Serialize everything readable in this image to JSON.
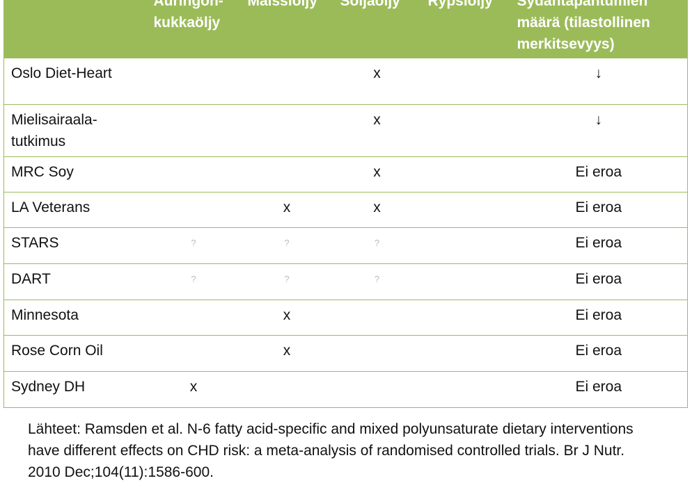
{
  "table": {
    "headers": [
      "Auringon-kukkaöljy",
      "Maissiöljy",
      "Soijaöljy",
      "Rypsiöljy",
      "Sydäntapahtumien määrä  (tilastollinen merkitsevyys)"
    ],
    "rows": [
      {
        "label": "Oslo Diet-Heart",
        "cells": [
          null,
          null,
          "x",
          null,
          "↓"
        ]
      },
      {
        "label": "Mielisairaala-tutkimus",
        "cells": [
          null,
          null,
          "x",
          null,
          "↓"
        ]
      },
      {
        "label": "MRC Soy",
        "cells": [
          null,
          null,
          "x",
          null,
          "Ei eroa"
        ]
      },
      {
        "label": "LA Veterans",
        "cells": [
          null,
          "x",
          "x",
          null,
          "Ei eroa"
        ]
      },
      {
        "label": "STARS",
        "cells": [
          "?",
          "?",
          "?",
          null,
          "Ei eroa"
        ]
      },
      {
        "label": "DART",
        "cells": [
          "?",
          "?",
          "?",
          null,
          "Ei eroa"
        ]
      },
      {
        "label": "Minnesota",
        "cells": [
          null,
          "x",
          null,
          null,
          "Ei eroa"
        ]
      },
      {
        "label": "Rose Corn Oil",
        "cells": [
          null,
          "x",
          null,
          null,
          "Ei eroa"
        ]
      },
      {
        "label": "Sydney DH",
        "cells": [
          "x",
          null,
          null,
          null,
          "Ei eroa"
        ]
      }
    ]
  },
  "source": "Lähteet: Ramsden et al. N-6 fatty acid-specific and mixed polyunsaturate dietary interventions have different effects on CHD risk: a meta-analysis of randomised controlled trials. Br J Nutr. 2010 Dec;104(11):1586-600."
}
